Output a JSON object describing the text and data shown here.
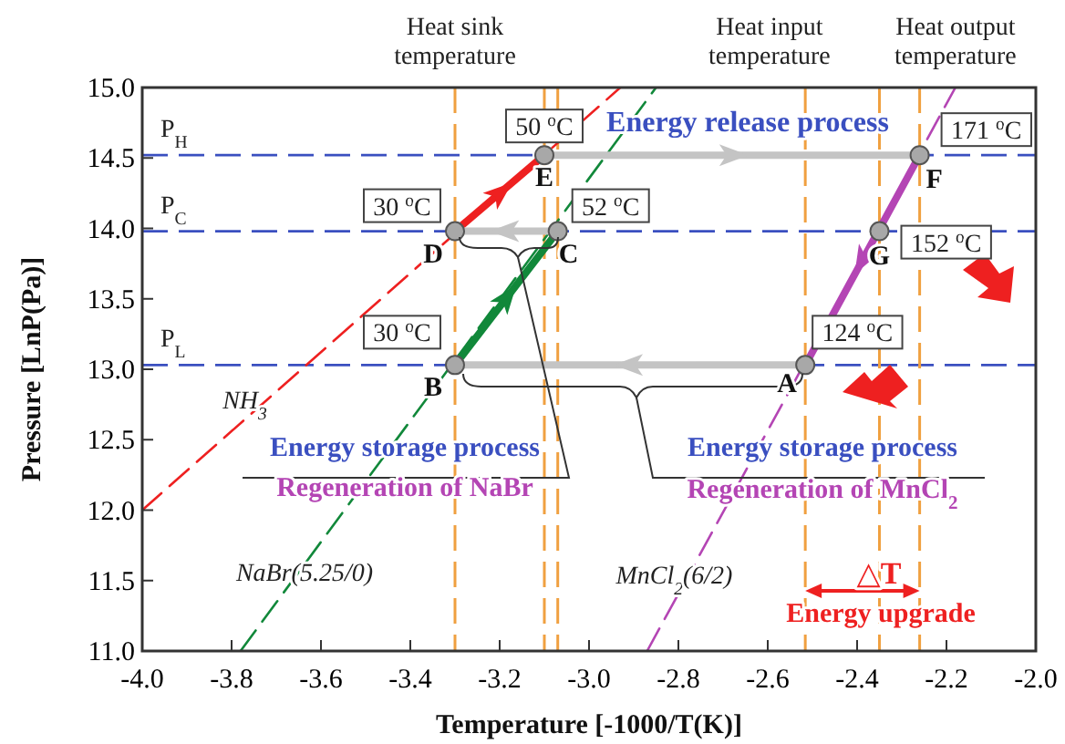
{
  "chart_data": {
    "type": "line",
    "xlabel": "Temperature [-1000/T(K)]",
    "ylabel": "Pressure  [LnP(Pa)]",
    "xlim": [
      -4.0,
      -2.0
    ],
    "ylim": [
      11.0,
      15.0
    ],
    "xticks": [
      {
        "value": -4.0,
        "label": "-4.0"
      },
      {
        "value": -3.8,
        "label": "-3.8"
      },
      {
        "value": -3.6,
        "label": "-3.6"
      },
      {
        "value": -3.4,
        "label": "-3.4"
      },
      {
        "value": -3.2,
        "label": "-3.2"
      },
      {
        "value": -3.0,
        "label": "-3.0"
      },
      {
        "value": -2.8,
        "label": "-2.8"
      },
      {
        "value": -2.6,
        "label": "-2.6"
      },
      {
        "value": -2.4,
        "label": "-2.4"
      },
      {
        "value": -2.2,
        "label": "-2.2"
      },
      {
        "value": -2.0,
        "label": "-2.0"
      }
    ],
    "yticks": [
      {
        "value": 11.0,
        "label": "11.0"
      },
      {
        "value": 11.5,
        "label": "11.5"
      },
      {
        "value": 12.0,
        "label": "12.0"
      },
      {
        "value": 12.5,
        "label": "12.5"
      },
      {
        "value": 13.0,
        "label": "13.0"
      },
      {
        "value": 13.5,
        "label": "13.5"
      },
      {
        "value": 14.0,
        "label": "14.0"
      },
      {
        "value": 14.5,
        "label": "14.5"
      },
      {
        "value": 15.0,
        "label": "15.0"
      }
    ],
    "grid": false,
    "series": [
      {
        "name": "NH$_{3}$",
        "color": "#ee2020",
        "line_style": "dashed",
        "x": [
          -4.0,
          -2.93
        ],
        "values": [
          12.0,
          15.0
        ]
      },
      {
        "name": "NaBr(5.25/0)",
        "color": "#11883a",
        "line_style": "dashed",
        "x": [
          -3.78,
          -2.85
        ],
        "values": [
          11.0,
          15.0
        ]
      },
      {
        "name": "MnCl$_{2}$(6/2)",
        "color": "#b445b4",
        "line_style": "dashed",
        "x": [
          -2.87,
          -2.18
        ],
        "values": [
          11.0,
          15.0
        ]
      },
      {
        "color": "#ee2020",
        "line_style": "solid",
        "x": [
          -3.3,
          -3.1
        ],
        "values": [
          13.98,
          14.52
        ]
      },
      {
        "color": "#11883a",
        "line_style": "solid",
        "x": [
          -3.3,
          -3.07
        ],
        "values": [
          13.03,
          13.98
        ]
      },
      {
        "color": "#b445b4",
        "line_style": "solid",
        "x": [
          -2.26,
          -2.516
        ],
        "values": [
          14.52,
          13.03
        ]
      },
      {
        "color": "#c4c4c4",
        "line_style": "solid",
        "x": [
          -3.1,
          -2.26
        ],
        "values": [
          14.52,
          14.52
        ]
      },
      {
        "color": "#c4c4c4",
        "line_style": "solid",
        "x": [
          -2.516,
          -3.3
        ],
        "values": [
          13.03,
          13.03
        ]
      },
      {
        "color": "#c4c4c4",
        "line_style": "solid",
        "x": [
          -3.07,
          -3.3
        ],
        "values": [
          13.98,
          13.98
        ]
      },
      {
        "type": "scatter",
        "marker": "circle",
        "color": "#a8a8a8",
        "x": [
          -2.516,
          -3.3,
          -3.07,
          -3.3,
          -3.1,
          -2.26,
          -2.35
        ],
        "values": [
          13.03,
          13.03,
          13.98,
          13.98,
          14.52,
          14.52,
          13.98
        ]
      }
    ],
    "ref_lines": [
      {
        "axis": "y",
        "value": 14.52,
        "label": "P$_{H}$",
        "color": "#3a4fc0",
        "line_style": "dashed"
      },
      {
        "axis": "y",
        "value": 13.98,
        "label": "P$_{C}$",
        "color": "#3a4fc0",
        "line_style": "dashed"
      },
      {
        "axis": "y",
        "value": 13.03,
        "label": "P$_{L}$",
        "color": "#3a4fc0",
        "line_style": "dashed"
      },
      {
        "axis": "x",
        "value": -3.3,
        "label": "Heat sink temperature",
        "color": "#f0a040",
        "line_style": "dashed"
      },
      {
        "axis": "x",
        "value": -3.1,
        "label": null,
        "color": "#f0a040",
        "line_style": "dashed"
      },
      {
        "axis": "x",
        "value": -3.07,
        "label": null,
        "color": "#f0a040",
        "line_style": "dashed"
      },
      {
        "axis": "x",
        "value": -2.516,
        "label": "Heat input temperature",
        "color": "#f0a040",
        "line_style": "dashed"
      },
      {
        "axis": "x",
        "value": -2.35,
        "label": null,
        "color": "#f0a040",
        "line_style": "dashed"
      },
      {
        "axis": "x",
        "value": -2.26,
        "label": "Heat output temperature",
        "color": "#f0a040",
        "line_style": "dashed"
      }
    ],
    "annotations": [
      "Energy release process",
      "Energy storage process",
      "Regeneration of NaBr",
      "Energy storage process",
      "Regeneration of MnCl$_{2}$",
      "△T",
      "Energy upgrade",
      {
        "text": "A",
        "x": -2.516,
        "y": 13.03
      },
      {
        "text": "B",
        "x": -3.3,
        "y": 13.03
      },
      {
        "text": "C",
        "x": -3.07,
        "y": 13.98
      },
      {
        "text": "D",
        "x": -3.3,
        "y": 13.98
      },
      {
        "text": "E",
        "x": -3.1,
        "y": 14.52
      },
      {
        "text": "F",
        "x": -2.26,
        "y": 14.52
      },
      {
        "text": "G",
        "x": -2.35,
        "y": 13.98
      },
      {
        "text": "124 $^{o}$C",
        "x": -2.516,
        "y": 13.03
      },
      {
        "text": "30 $^{o}$C",
        "x": -3.3,
        "y": 13.03
      },
      {
        "text": "52 $^{o}$C",
        "x": -3.07,
        "y": 13.98
      },
      {
        "text": "30 $^{o}$C",
        "x": -3.3,
        "y": 13.98
      },
      {
        "text": "50 $^{o}$C",
        "x": -3.1,
        "y": 14.52
      },
      {
        "text": "171 $^{o}$C",
        "x": -2.26,
        "y": 14.52
      },
      {
        "text": "152 $^{o}$C",
        "x": -2.35,
        "y": 13.98
      }
    ]
  }
}
